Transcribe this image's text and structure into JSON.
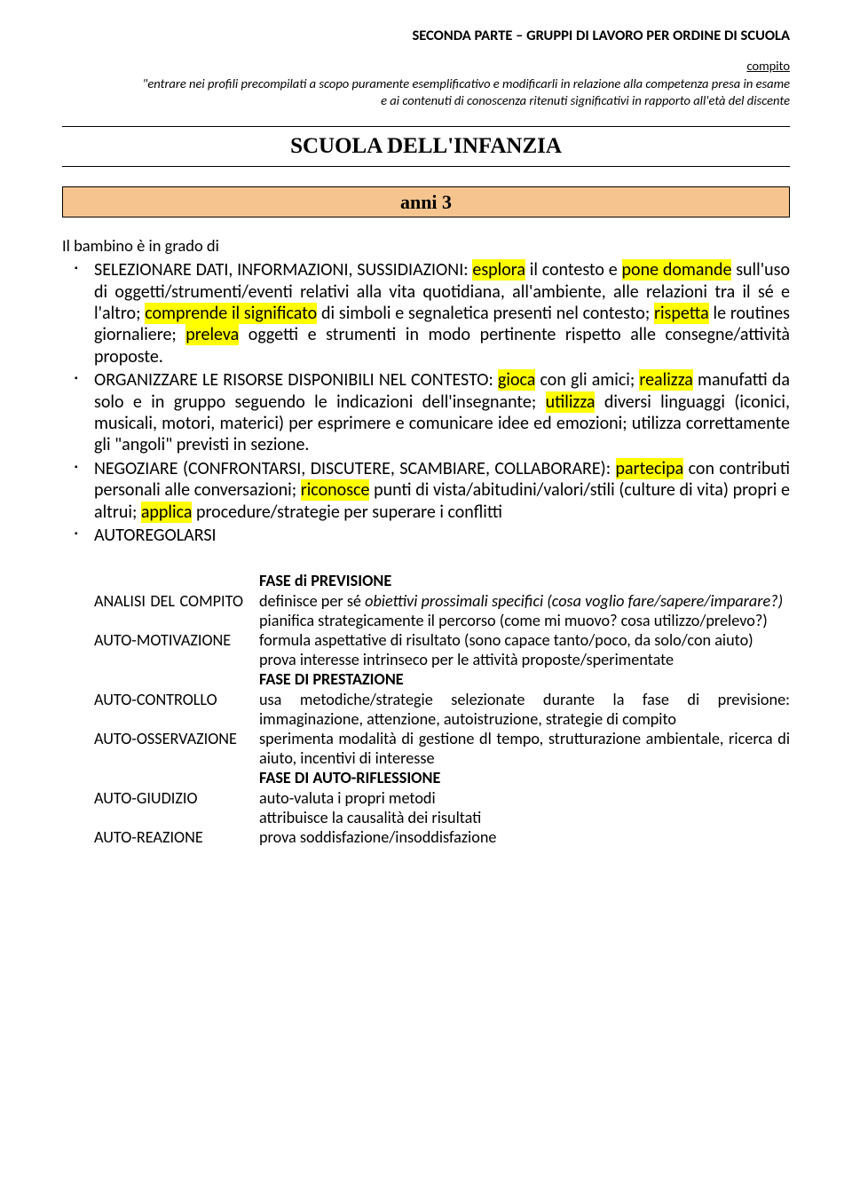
{
  "header": {
    "title": "SECONDA PARTE – GRUPPI DI LAVORO PER ORDINE DI SCUOLA",
    "sub": "compito",
    "line1": "\"entrare nei profili precompilati a scopo puramente esemplificativo e modificarli in relazione alla competenza presa in esame",
    "line2": "e ai contenuti di conoscenza ritenuti significativi in rapporto all'età del discente"
  },
  "main_title": "SCUOLA DELL'INFANZIA",
  "age_banner": "anni 3",
  "intro": "Il bambino è in grado di",
  "bullets": {
    "b1": {
      "pre1": "SELEZIONARE DATI, INFORMAZIONI, SUSSIDIAZIONI: ",
      "hl1": "esplora",
      "t1": " il contesto e ",
      "hl2": "pone domande",
      "t2": " sull'uso di oggetti/strumenti/eventi relativi alla vita quotidiana, all'ambiente, alle relazioni tra il sé e l'altro; ",
      "hl3": "comprende il significato",
      "t3": " di simboli e segnaletica presenti nel contesto; ",
      "hl4": "rispetta",
      "t4": " le routines giornaliere; ",
      "hl5": "preleva",
      "t5": " oggetti e strumenti in modo pertinente rispetto alle consegne/attività proposte."
    },
    "b2": {
      "pre1": "ORGANIZZARE LE RISORSE DISPONIBILI NEL CONTESTO: ",
      "hl1": "gioca",
      "t1": " con gli amici; ",
      "hl2": "realizza",
      "t2": " manufatti da solo e in gruppo seguendo le indicazioni dell'insegnante; ",
      "hl3": "utilizza",
      "t3": " diversi linguaggi (iconici, musicali, motori, materici) per esprimere e comunicare idee ed emozioni; utilizza correttamente gli \"angoli\" previsti in sezione."
    },
    "b3": {
      "pre1": "NEGOZIARE (CONFRONTARSI, DISCUTERE, SCAMBIARE, COLLABORARE): ",
      "hl1": "partecipa",
      "t1": " con contributi personali alle conversazioni; ",
      "hl2": "riconosce",
      "t2": " punti di vista/abitudini/valori/stili (culture di vita) propri e altrui; ",
      "hl3": "applica",
      "t3": " procedure/strategie per superare i conflitti"
    },
    "b4": {
      "t": "AUTOREGOLARSI"
    }
  },
  "table": {
    "phase1": "FASE di PREVISIONE",
    "r1_left": "ANALISI DEL COMPITO",
    "r1_a": "definisce per sé ",
    "r1_i": "obiettivi prossimali specifici (cosa voglio fare/sapere/imparare?)",
    "r1_b": "pianifica strategicamente il percorso (come mi muovo? cosa utilizzo/prelevo?)",
    "r2_left": "AUTO-MOTIVAZIONE",
    "r2_a": "formula aspettative di risultato (sono capace tanto/poco, da solo/con aiuto)",
    "r2_b": "prova interesse intrinseco per le attività proposte/sperimentate",
    "phase2": "FASE DI PRESTAZIONE",
    "r3_left": "AUTO-CONTROLLO",
    "r3_a": "usa metodiche/strategie selezionate durante la fase di previsione: immaginazione, attenzione, autoistruzione, strategie di compito",
    "r4_left": "AUTO-OSSERVAZIONE",
    "r4_a": "sperimenta modalità di gestione dl tempo, strutturazione ambientale, ricerca di aiuto, incentivi di interesse",
    "phase3": "FASE DI AUTO-RIFLESSIONE",
    "r5_left": " AUTO-GIUDIZIO",
    "r5_a": "auto-valuta i propri metodi",
    "r5_b": "attribuisce la causalità dei risultati",
    "r6_left": "AUTO-REAZIONE",
    "r6_a": "prova soddisfazione/insoddisfazione"
  },
  "colors": {
    "highlight": "#ffff00",
    "banner_bg": "#f6c58f",
    "text": "#000000",
    "bg": "#ffffff"
  }
}
